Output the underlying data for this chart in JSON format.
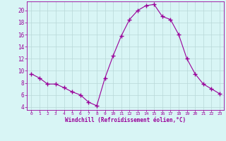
{
  "x": [
    0,
    1,
    2,
    3,
    4,
    5,
    6,
    7,
    8,
    9,
    10,
    11,
    12,
    13,
    14,
    15,
    16,
    17,
    18,
    19,
    20,
    21,
    22,
    23
  ],
  "y": [
    9.5,
    8.8,
    7.8,
    7.8,
    7.2,
    6.5,
    6.0,
    4.8,
    4.2,
    8.8,
    12.5,
    15.8,
    18.5,
    20.0,
    20.8,
    21.0,
    19.0,
    18.5,
    16.0,
    12.0,
    9.5,
    7.8,
    7.0,
    6.2
  ],
  "line_color": "#990099",
  "marker": "+",
  "marker_size": 4,
  "bg_color": "#d8f5f5",
  "grid_color": "#b8d8d8",
  "xlabel": "Windchill (Refroidissement éolien,°C)",
  "xlabel_color": "#990099",
  "ylabel": "",
  "title": "",
  "xlim": [
    -0.5,
    23.5
  ],
  "ylim": [
    3.5,
    21.5
  ],
  "yticks": [
    4,
    6,
    8,
    10,
    12,
    14,
    16,
    18,
    20
  ],
  "xticks": [
    0,
    1,
    2,
    3,
    4,
    5,
    6,
    7,
    8,
    9,
    10,
    11,
    12,
    13,
    14,
    15,
    16,
    17,
    18,
    19,
    20,
    21,
    22,
    23
  ],
  "tick_color": "#990099",
  "axis_color": "#990099",
  "figsize": [
    3.2,
    2.0
  ],
  "dpi": 100
}
